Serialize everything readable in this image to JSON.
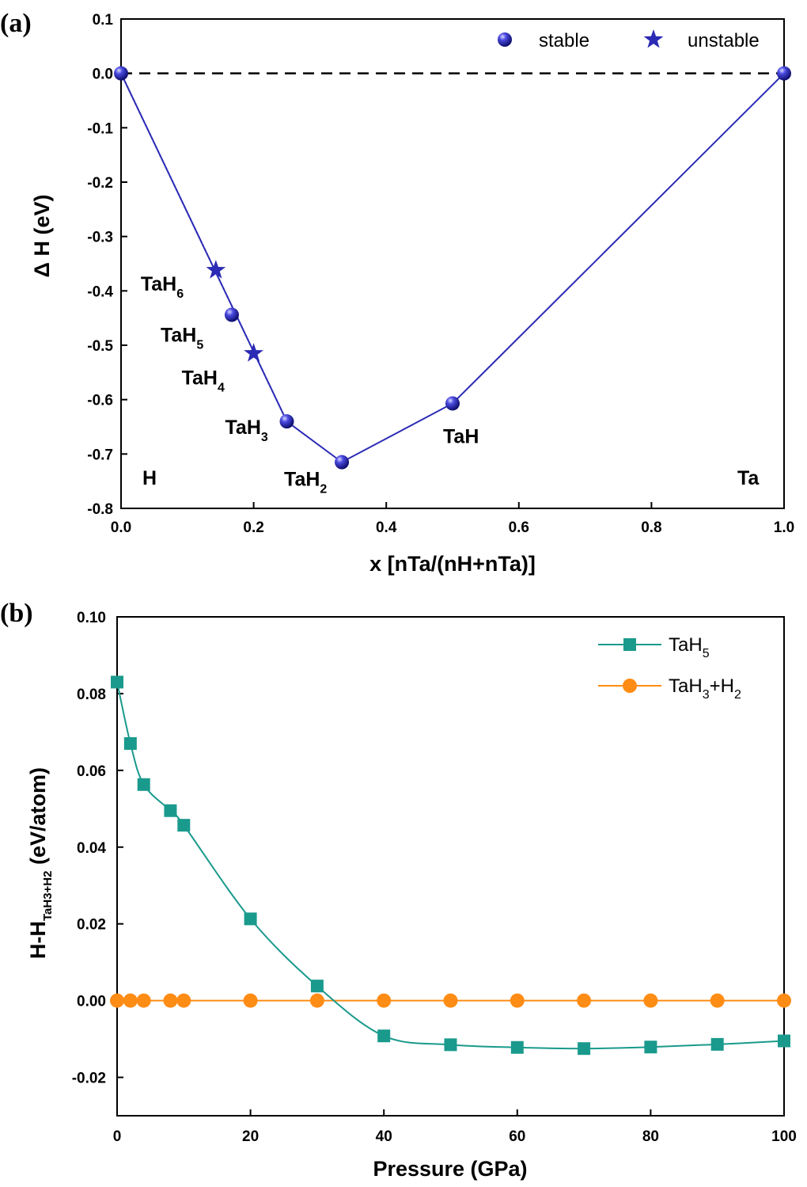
{
  "chart_data": [
    {
      "panel": "(a)",
      "type": "line",
      "xlabel": "x [nTa/(nH+nTa)]",
      "ylabel": "Δ H (eV)",
      "xlim": [
        0.0,
        1.0
      ],
      "ylim": [
        -0.8,
        0.1
      ],
      "xticks": [
        "0.0",
        "0.2",
        "0.4",
        "0.6",
        "0.8",
        "1.0"
      ],
      "yticks": [
        "0.1",
        "0.0",
        "-0.1",
        "-0.2",
        "-0.3",
        "-0.4",
        "-0.5",
        "-0.6",
        "-0.7",
        "-0.8"
      ],
      "reference_line_y": 0.0,
      "legend": [
        {
          "label": "stable",
          "marker": "sphere"
        },
        {
          "label": "unstable",
          "marker": "star"
        }
      ],
      "legend_position": "top-right",
      "hull_line": [
        [
          0.0,
          0.0
        ],
        [
          0.25,
          -0.64
        ],
        [
          0.333,
          -0.715
        ],
        [
          0.5,
          -0.607
        ],
        [
          1.0,
          0.0
        ]
      ],
      "dotted_line": [
        [
          0.0,
          0.0
        ],
        [
          0.25,
          -0.64
        ]
      ],
      "points": [
        {
          "x": 0.0,
          "y": 0.0,
          "status": "stable",
          "label": "H"
        },
        {
          "x": 0.143,
          "y": -0.362,
          "status": "unstable",
          "label": "TaH",
          "sub": "6"
        },
        {
          "x": 0.167,
          "y": -0.444,
          "status": "stable",
          "label": "TaH",
          "sub": "5"
        },
        {
          "x": 0.2,
          "y": -0.515,
          "status": "unstable",
          "label": "TaH",
          "sub": "4"
        },
        {
          "x": 0.25,
          "y": -0.64,
          "status": "stable",
          "label": "TaH",
          "sub": "3"
        },
        {
          "x": 0.333,
          "y": -0.715,
          "status": "stable",
          "label": "TaH",
          "sub": "2"
        },
        {
          "x": 0.5,
          "y": -0.607,
          "status": "stable",
          "label": "TaH",
          "sub": ""
        },
        {
          "x": 1.0,
          "y": 0.0,
          "status": "stable",
          "label": "Ta"
        }
      ],
      "colors": {
        "series": "#2b2bb5"
      }
    },
    {
      "panel": "(b)",
      "type": "line",
      "xlabel": "Pressure (GPa)",
      "ylabel": "H-H",
      "ylabel_sub": "TaH3+H2",
      "ylabel_tail": " (eV/atom)",
      "xlim": [
        0,
        100
      ],
      "ylim": [
        -0.03,
        0.1
      ],
      "xticks": [
        "0",
        "20",
        "40",
        "60",
        "80",
        "100"
      ],
      "yticks": [
        "0.10",
        "0.08",
        "0.06",
        "0.04",
        "0.02",
        "0.00",
        "-0.02"
      ],
      "legend_position": "top-right",
      "series": [
        {
          "name": "TaH",
          "name_sub": "5",
          "name_tail": "",
          "marker": "square",
          "color": "#1a9a8c",
          "x": [
            0,
            2,
            4,
            8,
            10,
            20,
            30,
            40,
            50,
            60,
            70,
            80,
            90,
            100
          ],
          "values": [
            0.083,
            0.067,
            0.0563,
            0.0495,
            0.0457,
            0.0213,
            0.0038,
            -0.0092,
            -0.0115,
            -0.0122,
            -0.0125,
            -0.0121,
            -0.0114,
            -0.0105
          ]
        },
        {
          "name": "TaH",
          "name_sub": "3",
          "name_tail": "+H",
          "name_sub2": "2",
          "marker": "circle",
          "color": "#ff8c14",
          "x": [
            0,
            2,
            4,
            8,
            10,
            20,
            30,
            40,
            50,
            60,
            70,
            80,
            90,
            100
          ],
          "values": [
            0,
            0,
            0,
            0,
            0,
            0,
            0,
            0,
            0,
            0,
            0,
            0,
            0,
            0
          ]
        }
      ]
    }
  ]
}
